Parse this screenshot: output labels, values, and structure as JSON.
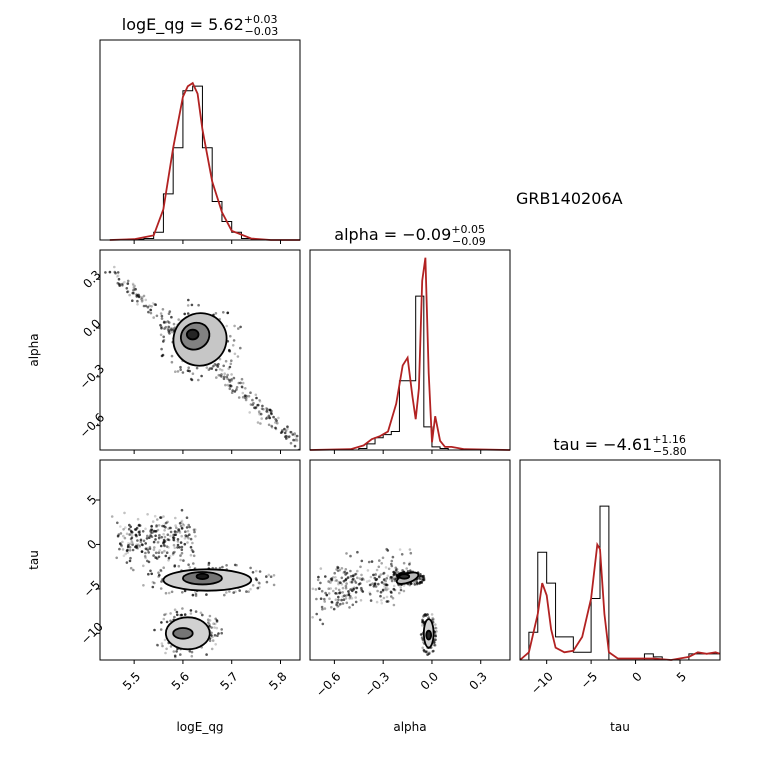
{
  "chart_data": {
    "type": "corner",
    "annotation": "GRB140206A",
    "parameters": [
      {
        "name": "logE_qg",
        "label": "logE_qg",
        "median": "5.62",
        "plus": "+0.03",
        "minus": "−0.03",
        "title_prefix": "logE_qg = 5.62",
        "range": [
          5.43,
          5.84
        ],
        "ticks": [
          5.5,
          5.6,
          5.7,
          5.8
        ],
        "tick_labels": [
          "5.5",
          "5.6",
          "5.7",
          "5.8"
        ]
      },
      {
        "name": "alpha",
        "label": "alpha",
        "median": "−0.09",
        "plus": "+0.05",
        "minus": "−0.09",
        "title_prefix": "alpha = −0.09",
        "range": [
          -0.75,
          0.48
        ],
        "ticks": [
          -0.6,
          -0.3,
          0.0,
          0.3
        ],
        "tick_labels": [
          "−0.6",
          "−0.3",
          "0.0",
          "0.3"
        ]
      },
      {
        "name": "tau",
        "label": "tau",
        "median": "−4.61",
        "plus": "+1.16",
        "minus": "−5.80",
        "title_prefix": "tau = −4.61",
        "range": [
          -13.0,
          9.5
        ],
        "ticks": [
          -10,
          -5,
          0,
          5
        ],
        "tick_labels": [
          "−10",
          "−5",
          "0",
          "5"
        ]
      }
    ],
    "histograms": [
      {
        "param": "logE_qg",
        "bin_edges": [
          5.5,
          5.52,
          5.54,
          5.56,
          5.58,
          5.6,
          5.62,
          5.64,
          5.66,
          5.68,
          5.7,
          5.72,
          5.74
        ],
        "counts": [
          0.005,
          0.01,
          0.05,
          0.3,
          0.6,
          0.97,
          1.0,
          0.6,
          0.25,
          0.12,
          0.05,
          0.01
        ],
        "kde_x": [
          5.45,
          5.5,
          5.54,
          5.56,
          5.58,
          5.6,
          5.61,
          5.62,
          5.63,
          5.64,
          5.66,
          5.68,
          5.7,
          5.74,
          5.78,
          5.84
        ],
        "kde_y": [
          0.0,
          0.005,
          0.03,
          0.2,
          0.6,
          0.93,
          1.0,
          1.02,
          0.95,
          0.72,
          0.38,
          0.18,
          0.06,
          0.01,
          0.0,
          0.0
        ]
      },
      {
        "param": "alpha",
        "bin_edges": [
          -0.45,
          -0.4,
          -0.35,
          -0.3,
          -0.25,
          -0.2,
          -0.15,
          -0.1,
          -0.05,
          0.0,
          0.05,
          0.1
        ],
        "counts": [
          0.01,
          0.04,
          0.08,
          0.1,
          0.12,
          0.45,
          0.45,
          1.0,
          0.15,
          0.02,
          0.01
        ],
        "kde_x": [
          -0.75,
          -0.5,
          -0.42,
          -0.37,
          -0.32,
          -0.27,
          -0.22,
          -0.18,
          -0.15,
          -0.12,
          -0.1,
          -0.08,
          -0.06,
          -0.04,
          -0.02,
          0.0,
          0.02,
          0.05,
          0.08,
          0.12,
          0.2,
          0.48
        ],
        "kde_y": [
          0.0,
          0.005,
          0.03,
          0.07,
          0.09,
          0.12,
          0.3,
          0.55,
          0.6,
          0.35,
          0.2,
          0.4,
          1.1,
          1.25,
          0.5,
          0.05,
          0.22,
          0.06,
          0.02,
          0.02,
          0.005,
          0.0
        ]
      },
      {
        "param": "tau",
        "bin_edges": [
          -13,
          -12,
          -11,
          -10,
          -9,
          -8,
          -7,
          -6,
          -5,
          -4,
          -3,
          -2,
          -1,
          0,
          1,
          2,
          3,
          4,
          5,
          6,
          7,
          8,
          9,
          9.5
        ],
        "counts": [
          0.0,
          0.18,
          0.7,
          0.5,
          0.15,
          0.15,
          0.05,
          0.05,
          0.4,
          1.0,
          0.0,
          0.0,
          0.0,
          0.0,
          0.04,
          0.02,
          0.0,
          0.0,
          0.0,
          0.04,
          0.04,
          0.04,
          0.04
        ],
        "kde_x": [
          -13,
          -12,
          -11,
          -10.5,
          -10,
          -9.5,
          -9,
          -8,
          -7,
          -6,
          -5,
          -4.3,
          -4,
          -3.5,
          -3,
          -2,
          0,
          2,
          4,
          6,
          7,
          8,
          9,
          9.5
        ],
        "kde_y": [
          0.0,
          0.05,
          0.3,
          0.5,
          0.42,
          0.2,
          0.08,
          0.05,
          0.06,
          0.15,
          0.4,
          0.75,
          0.72,
          0.3,
          0.05,
          0.01,
          0.01,
          0.01,
          0.0,
          0.02,
          0.05,
          0.04,
          0.05,
          0.04
        ]
      }
    ],
    "pairs": [
      {
        "x_param": "logE_qg",
        "y_param": "alpha",
        "ellipses": [
          {
            "cx": 5.635,
            "cy": -0.07,
            "rx": 0.055,
            "ry": 0.16,
            "angle": -35,
            "level": 0.25
          },
          {
            "cx": 5.625,
            "cy": -0.05,
            "rx": 0.03,
            "ry": 0.08,
            "angle": -30,
            "level": 0.55
          },
          {
            "cx": 5.62,
            "cy": -0.04,
            "rx": 0.012,
            "ry": 0.03,
            "angle": 0,
            "level": 0.95
          }
        ],
        "scatter_trend": {
          "x": [
            5.45,
            5.84
          ],
          "y": [
            0.35,
            -0.72
          ],
          "spread": 0.06
        }
      },
      {
        "x_param": "logE_qg",
        "y_param": "tau",
        "ellipses": [
          {
            "cx": 5.65,
            "cy": -4.0,
            "rx": 0.09,
            "ry": 1.2,
            "angle": 0,
            "level": 0.2
          },
          {
            "cx": 5.64,
            "cy": -3.8,
            "rx": 0.04,
            "ry": 0.7,
            "angle": 0,
            "level": 0.6
          },
          {
            "cx": 5.64,
            "cy": -3.6,
            "rx": 0.012,
            "ry": 0.3,
            "angle": 0,
            "level": 1.0
          },
          {
            "cx": 5.61,
            "cy": -10.0,
            "rx": 0.045,
            "ry": 1.8,
            "angle": 0,
            "level": 0.2
          },
          {
            "cx": 5.6,
            "cy": -10.0,
            "rx": 0.02,
            "ry": 0.6,
            "angle": 0,
            "level": 0.6
          }
        ],
        "scatter_trend": {
          "x": [
            5.47,
            5.62
          ],
          "y": [
            0.2,
            1.0
          ],
          "spread": 0.2
        }
      },
      {
        "x_param": "alpha",
        "y_param": "tau",
        "ellipses": [
          {
            "cx": -0.15,
            "cy": -3.8,
            "rx": 0.07,
            "ry": 0.5,
            "angle": -20,
            "level": 0.3
          },
          {
            "cx": -0.17,
            "cy": -3.6,
            "rx": 0.03,
            "ry": 0.25,
            "angle": 0,
            "level": 0.9
          },
          {
            "cx": -0.02,
            "cy": -10.0,
            "rx": 0.03,
            "ry": 1.6,
            "angle": 0,
            "level": 0.2
          },
          {
            "cx": -0.02,
            "cy": -10.2,
            "rx": 0.015,
            "ry": 0.5,
            "angle": 0,
            "level": 0.95
          }
        ],
        "scatter_trend": {
          "x": [
            -0.7,
            -0.15
          ],
          "y": [
            -5.5,
            -3.5
          ],
          "spread": 0.2
        }
      }
    ],
    "colors": {
      "kde": "#b22222",
      "contour": "#000000",
      "scatter": "#000000"
    }
  }
}
